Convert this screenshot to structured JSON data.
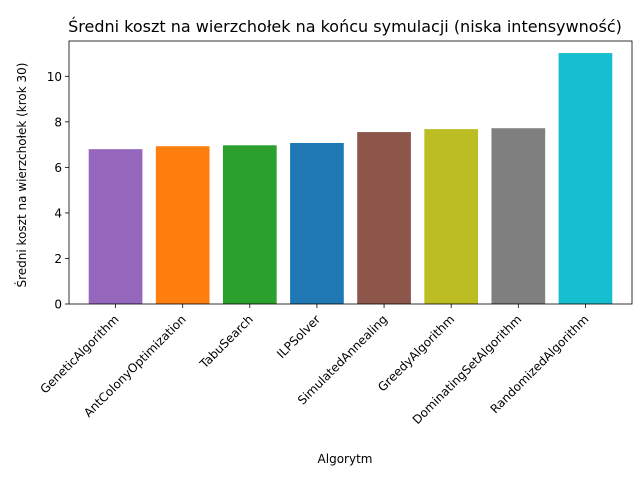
{
  "chart_data": {
    "type": "bar",
    "title": "Średni koszt na wierzchołek na końcu symulacji (niska intensywność)",
    "xlabel": "Algorytm",
    "ylabel": "Średni koszt na wierzchołek (krok 30)",
    "ylim": [
      0,
      11.55
    ],
    "yticks": [
      0,
      2,
      4,
      6,
      8,
      10
    ],
    "grid": false,
    "categories": [
      "GeneticAlgorithm",
      "AntColonyOptimization",
      "TabuSearch",
      "ILPSolver",
      "SimulatedAnnealing",
      "GreedyAlgorithm",
      "DominatingSetAlgorithm",
      "RandomizedAlgorithm"
    ],
    "values": [
      6.8,
      6.93,
      6.97,
      7.07,
      7.55,
      7.68,
      7.72,
      11.02
    ],
    "colors": [
      "#9467bd",
      "#ff7f0e",
      "#2ca02c",
      "#1f77b4",
      "#8c564b",
      "#bcbd22",
      "#7f7f7f",
      "#17becf"
    ]
  }
}
